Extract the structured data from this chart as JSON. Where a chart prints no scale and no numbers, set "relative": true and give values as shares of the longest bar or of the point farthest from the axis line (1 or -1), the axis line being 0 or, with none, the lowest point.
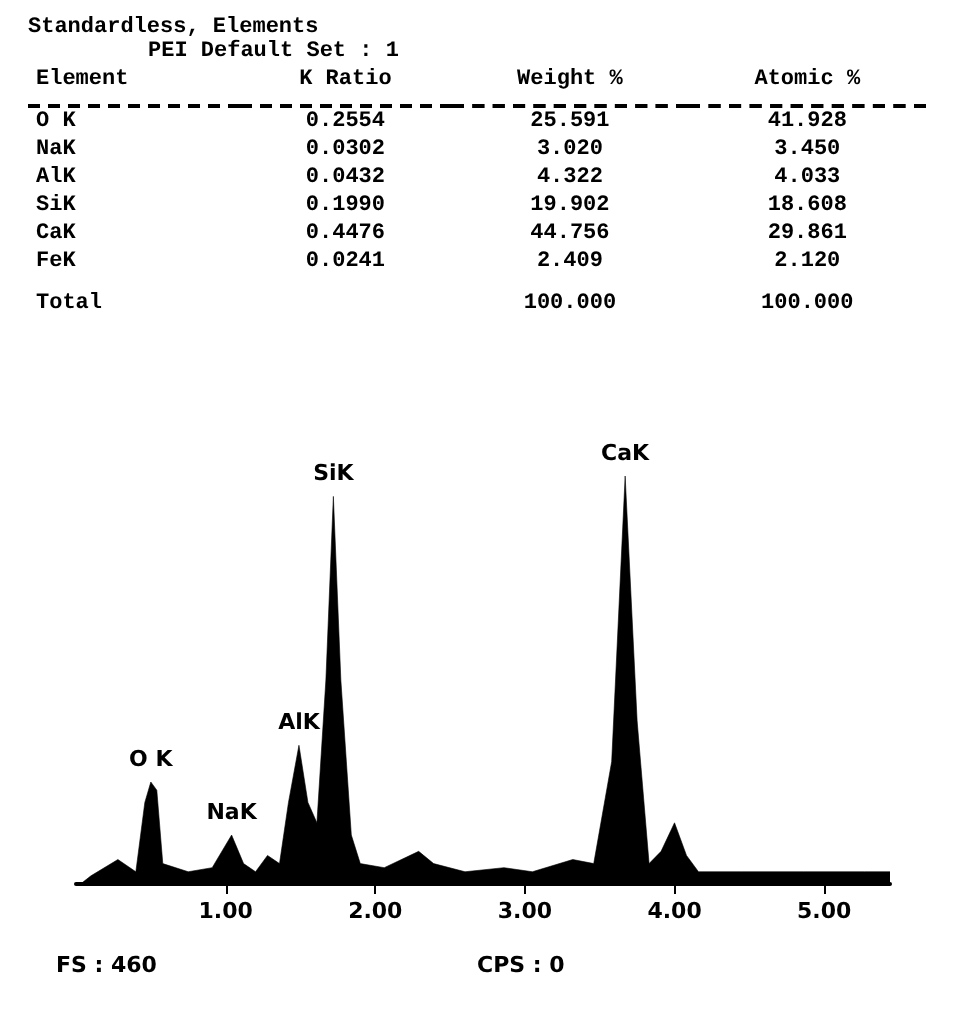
{
  "chart_data": [
    {
      "type": "other",
      "title": "Standardless, Elements",
      "subtitle": "PEI Default Set : 1",
      "categories": [
        "Element",
        "K Ratio",
        "Weight %",
        "Atomic %"
      ],
      "y_categories": [
        "O K",
        "NaK",
        "AlK",
        "SiK",
        "CaK",
        "FeK",
        "Total"
      ],
      "cell_labels": [
        [
          "0.2554",
          "25.591",
          "41.928"
        ],
        [
          "0.0302",
          "3.020",
          "3.450"
        ],
        [
          "0.0432",
          "4.322",
          "4.033"
        ],
        [
          "0.1990",
          "19.902",
          "18.608"
        ],
        [
          "0.4476",
          "44.756",
          "29.861"
        ],
        [
          "0.0241",
          "2.409",
          "2.120"
        ],
        [
          null,
          "100.000",
          "100.000"
        ]
      ]
    },
    {
      "type": "area",
      "relative": true,
      "grid": false,
      "xlim": [
        0,
        5.44
      ],
      "xticks": [
        {
          "value": 1,
          "label": "1.00"
        },
        {
          "value": 2,
          "label": "2.00"
        },
        {
          "value": 3,
          "label": "3.00"
        },
        {
          "value": 4,
          "label": "4.00"
        },
        {
          "value": 5,
          "label": "5.00"
        }
      ],
      "x": [
        0.03,
        0.1,
        0.28,
        0.4,
        0.46,
        0.5,
        0.54,
        0.58,
        0.75,
        0.91,
        1.04,
        1.12,
        1.2,
        1.28,
        1.36,
        1.42,
        1.49,
        1.55,
        1.61,
        1.67,
        1.72,
        1.77,
        1.84,
        1.9,
        2.06,
        2.29,
        2.39,
        2.6,
        2.86,
        3.05,
        3.32,
        3.46,
        3.58,
        3.67,
        3.75,
        3.83,
        3.91,
        4.0,
        4.08,
        4.16,
        4.45,
        4.86,
        5.27,
        5.44
      ],
      "series": [
        {
          "color": "#000000",
          "values": [
            0.0,
            0.02,
            0.06,
            0.03,
            0.2,
            0.25,
            0.23,
            0.05,
            0.03,
            0.04,
            0.12,
            0.05,
            0.03,
            0.07,
            0.05,
            0.2,
            0.34,
            0.2,
            0.15,
            0.5,
            0.95,
            0.5,
            0.12,
            0.05,
            0.04,
            0.08,
            0.05,
            0.03,
            0.04,
            0.03,
            0.06,
            0.05,
            0.3,
            1.0,
            0.4,
            0.05,
            0.08,
            0.15,
            0.07,
            0.03,
            0.03,
            0.03,
            0.03,
            0.03
          ]
        }
      ],
      "annotations": [
        {
          "text": "O K",
          "x": 0.5,
          "y": 0.25
        },
        {
          "text": "NaK",
          "x": 1.04,
          "y": 0.12
        },
        {
          "text": "AlK",
          "x": 1.49,
          "y": 0.34
        },
        {
          "text": "SiK",
          "x": 1.72,
          "y": 0.95
        },
        {
          "text": "CaK",
          "x": 3.67,
          "y": 1.0
        },
        "FS : 460",
        "CPS : 0"
      ]
    }
  ]
}
